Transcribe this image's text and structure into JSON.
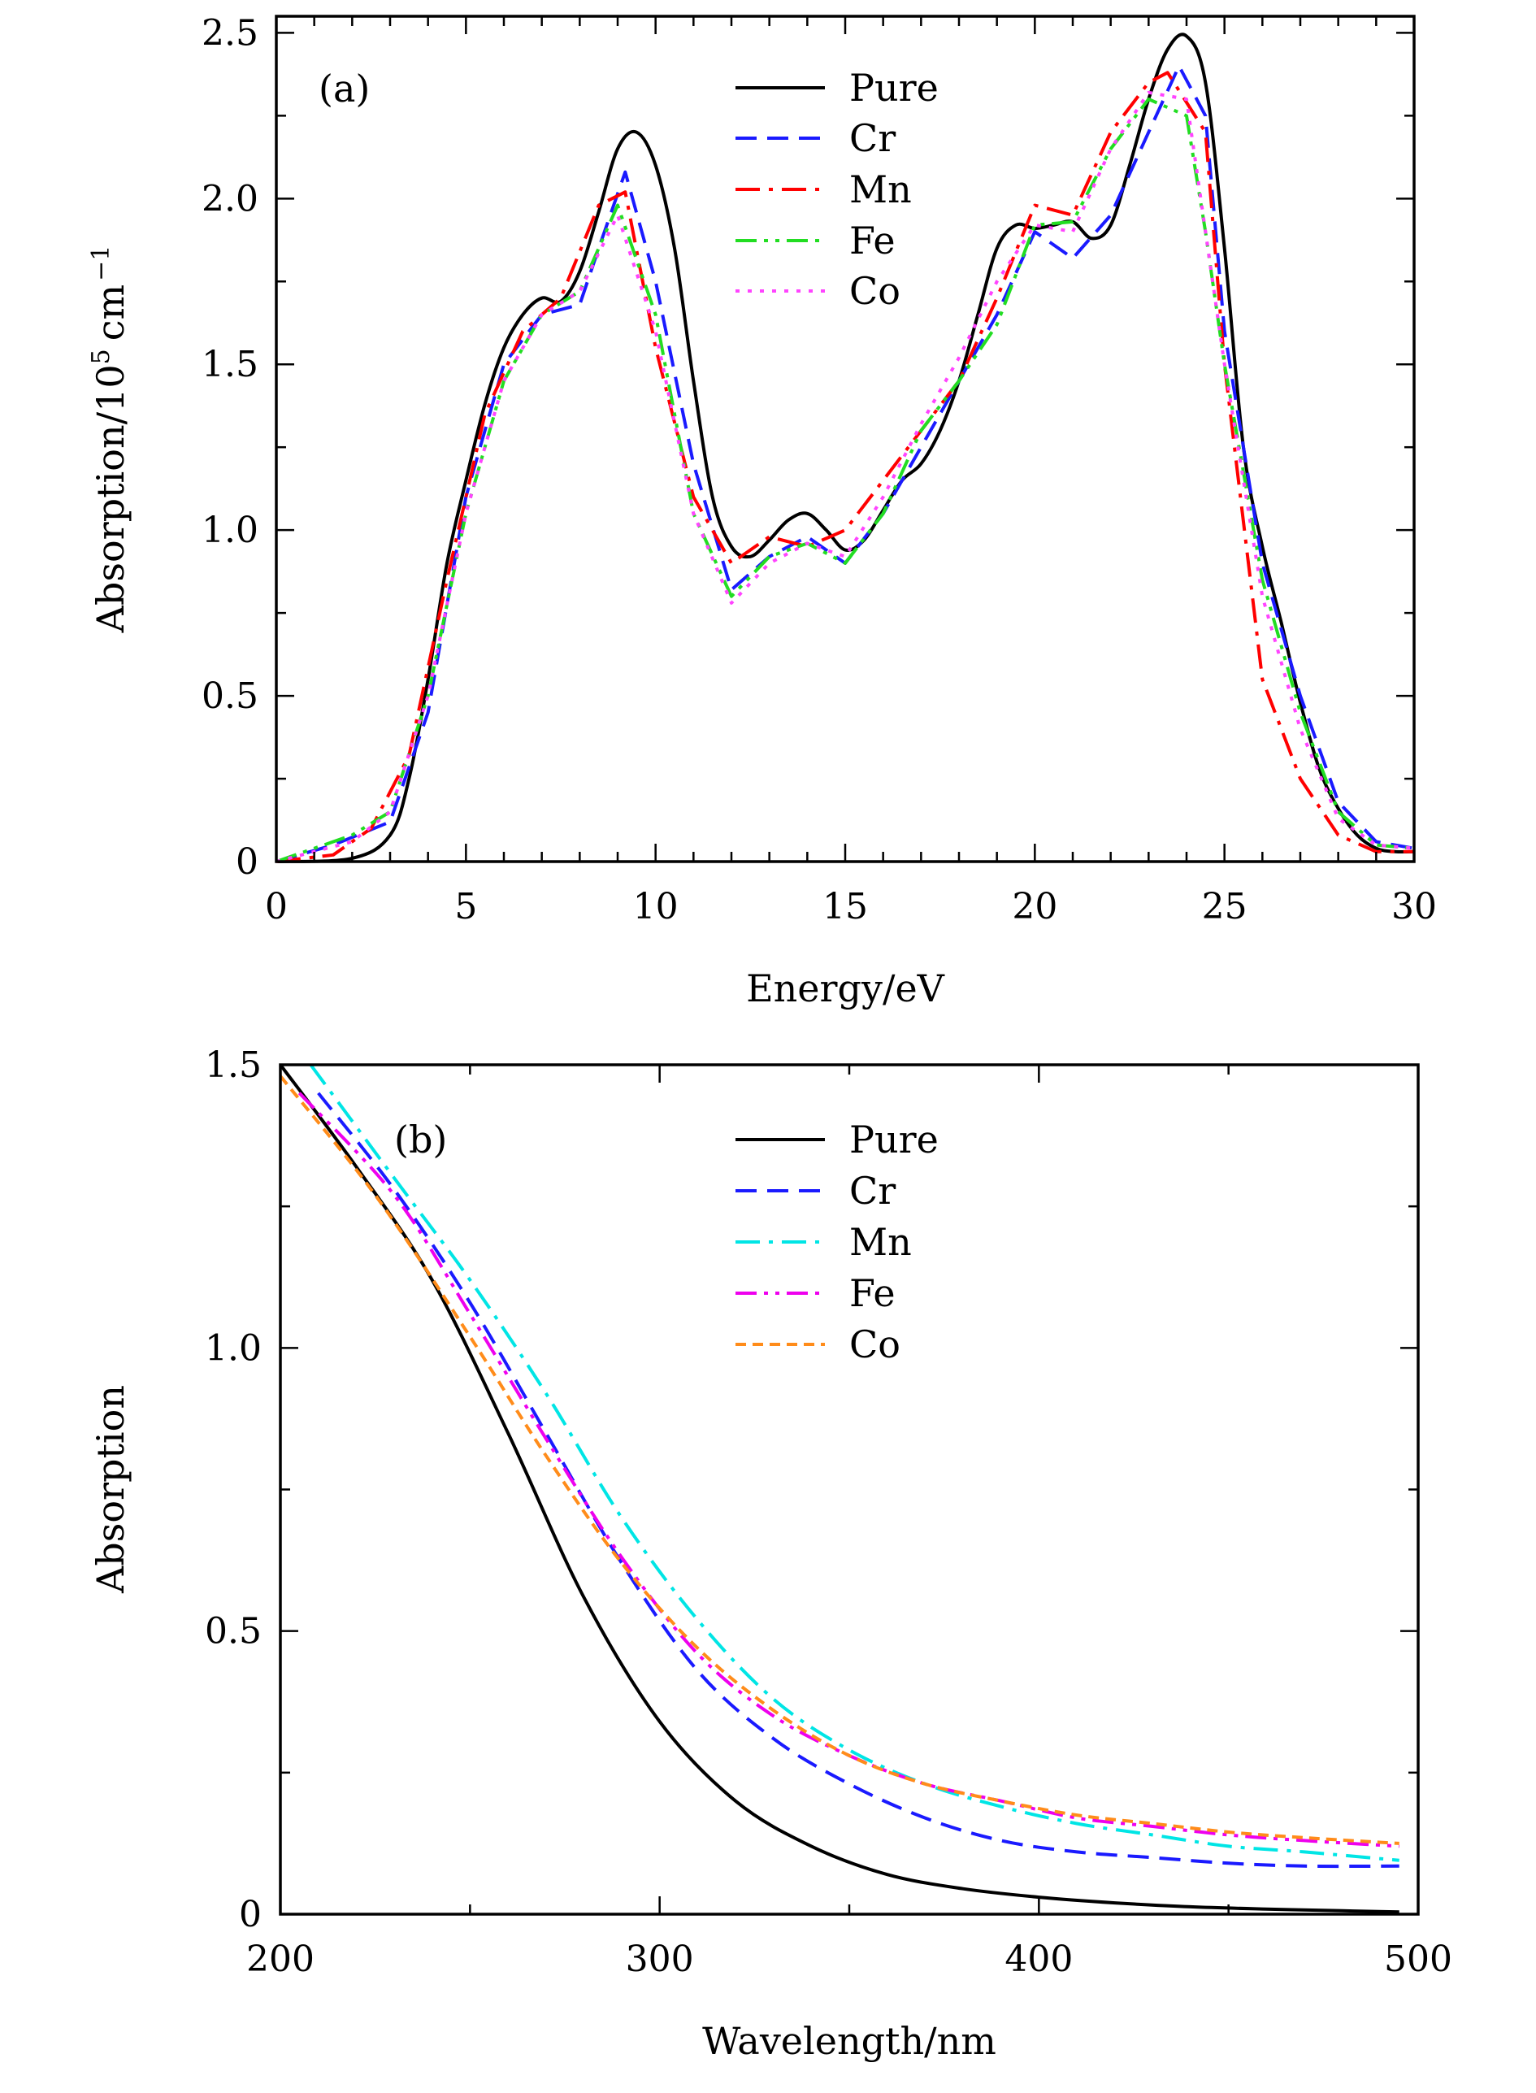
{
  "chart_data": [
    {
      "type": "line",
      "panel_label": "(a)",
      "xlabel": "Energy/eV",
      "ylabel": "Absorption/10",
      "ylabel_exp1": "5",
      "ylabel_unit": "cm",
      "ylabel_exp2": "−1",
      "xlim": [
        0,
        30
      ],
      "ylim": [
        0,
        2.55
      ],
      "xticks": [
        0,
        5,
        10,
        15,
        20,
        25,
        30
      ],
      "xtick_labels": [
        "0",
        "5",
        "10",
        "15",
        "20",
        "25",
        "30"
      ],
      "yticks": [
        0,
        0.5,
        1.0,
        1.5,
        2.0,
        2.5
      ],
      "ytick_labels": [
        "0",
        "0.5",
        "1.0",
        "1.5",
        "2.0",
        "2.5"
      ],
      "legend_position": "top-center",
      "series": [
        {
          "name": "Pure",
          "color": "#000000",
          "dash": "solid",
          "smooth": true,
          "x": [
            0,
            2.0,
            3.0,
            3.5,
            4.0,
            4.5,
            5.0,
            5.5,
            6.0,
            6.5,
            7.0,
            7.5,
            8.0,
            8.5,
            9.0,
            9.5,
            10.0,
            10.5,
            11.0,
            11.5,
            12.0,
            12.5,
            13.0,
            13.5,
            14.0,
            14.5,
            15.0,
            15.5,
            16.0,
            16.5,
            17.0,
            17.5,
            18.0,
            18.5,
            19.0,
            19.5,
            20.0,
            20.5,
            21.0,
            21.5,
            22.0,
            22.5,
            23.0,
            23.5,
            24.0,
            24.5,
            25.0,
            25.5,
            26.0,
            26.5,
            27.0,
            27.5,
            28.0,
            28.5,
            29.0,
            29.5,
            30.0
          ],
          "y": [
            0,
            0.01,
            0.08,
            0.25,
            0.55,
            0.9,
            1.15,
            1.38,
            1.55,
            1.65,
            1.7,
            1.69,
            1.78,
            1.96,
            2.15,
            2.2,
            2.1,
            1.85,
            1.45,
            1.1,
            0.95,
            0.92,
            0.97,
            1.03,
            1.05,
            1.0,
            0.94,
            0.97,
            1.06,
            1.15,
            1.2,
            1.3,
            1.45,
            1.65,
            1.85,
            1.92,
            1.91,
            1.92,
            1.93,
            1.88,
            1.92,
            2.1,
            2.3,
            2.45,
            2.49,
            2.35,
            1.85,
            1.25,
            0.95,
            0.72,
            0.48,
            0.28,
            0.16,
            0.08,
            0.04,
            0.03,
            0.03
          ]
        },
        {
          "name": "Cr",
          "color": "#1a1aff",
          "dash": "dashed",
          "smooth": false,
          "x": [
            0,
            1.5,
            3.0,
            4.0,
            5.0,
            6.0,
            7.0,
            8.0,
            8.5,
            9.2,
            10.0,
            11.0,
            12.0,
            13.0,
            14.0,
            15.0,
            16.0,
            17.0,
            18.0,
            19.0,
            20.0,
            21.0,
            22.0,
            23.0,
            23.8,
            24.5,
            25.0,
            26.0,
            27.0,
            28.0,
            29.0,
            30.0
          ],
          "y": [
            0,
            0.05,
            0.12,
            0.45,
            1.1,
            1.5,
            1.65,
            1.68,
            1.85,
            2.08,
            1.75,
            1.2,
            0.82,
            0.92,
            0.98,
            0.9,
            1.05,
            1.25,
            1.45,
            1.65,
            1.9,
            1.82,
            1.95,
            2.2,
            2.4,
            2.25,
            1.6,
            0.9,
            0.5,
            0.18,
            0.06,
            0.04
          ]
        },
        {
          "name": "Mn",
          "color": "#ff0000",
          "dash": "dashdot",
          "smooth": false,
          "x": [
            0,
            1.5,
            2.5,
            3.5,
            4.5,
            5.5,
            6.5,
            7.5,
            8.5,
            9.2,
            10.0,
            11.0,
            12.0,
            13.0,
            14.0,
            15.0,
            16.0,
            17.0,
            18.0,
            19.0,
            20.0,
            21.0,
            22.0,
            23.0,
            23.5,
            24.5,
            25.0,
            26.0,
            27.0,
            28.0,
            29.0,
            30.0
          ],
          "y": [
            0,
            0.02,
            0.1,
            0.32,
            0.85,
            1.35,
            1.6,
            1.7,
            1.98,
            2.02,
            1.55,
            1.1,
            0.9,
            0.98,
            0.95,
            1.0,
            1.15,
            1.3,
            1.45,
            1.7,
            1.98,
            1.95,
            2.2,
            2.35,
            2.38,
            2.2,
            1.5,
            0.55,
            0.25,
            0.08,
            0.03,
            0.03
          ]
        },
        {
          "name": "Fe",
          "color": "#22dd22",
          "dash": "dashdotdot",
          "smooth": false,
          "x": [
            0,
            2.0,
            3.0,
            4.0,
            5.0,
            6.0,
            7.0,
            8.0,
            9.0,
            10.0,
            11.0,
            12.0,
            13.0,
            14.0,
            15.0,
            16.0,
            17.0,
            18.0,
            19.0,
            20.0,
            21.0,
            22.0,
            23.0,
            24.0,
            24.5,
            25.0,
            26.0,
            27.0,
            28.0,
            29.0,
            30.0
          ],
          "y": [
            0,
            0.08,
            0.15,
            0.5,
            1.05,
            1.45,
            1.65,
            1.72,
            1.98,
            1.65,
            1.05,
            0.8,
            0.92,
            0.96,
            0.9,
            1.05,
            1.3,
            1.45,
            1.62,
            1.92,
            1.93,
            2.15,
            2.3,
            2.25,
            1.9,
            1.5,
            0.85,
            0.45,
            0.15,
            0.05,
            0.04
          ]
        },
        {
          "name": "Co",
          "color": "#ff44ff",
          "dash": "dotted",
          "smooth": false,
          "x": [
            0,
            2.0,
            3.0,
            4.0,
            5.0,
            6.0,
            7.0,
            8.0,
            9.0,
            10.0,
            11.0,
            12.0,
            13.0,
            14.0,
            15.0,
            16.0,
            17.0,
            18.0,
            19.0,
            20.0,
            21.0,
            22.0,
            23.0,
            24.0,
            25.0,
            26.0,
            27.0,
            28.0,
            29.0,
            30.0
          ],
          "y": [
            0,
            0.06,
            0.15,
            0.5,
            1.05,
            1.45,
            1.65,
            1.72,
            1.95,
            1.6,
            1.05,
            0.78,
            0.9,
            0.96,
            0.92,
            1.1,
            1.32,
            1.52,
            1.75,
            1.92,
            1.9,
            2.15,
            2.32,
            2.3,
            1.5,
            0.8,
            0.4,
            0.13,
            0.05,
            0.04
          ]
        }
      ]
    },
    {
      "type": "line",
      "panel_label": "(b)",
      "xlabel": "Wavelength/nm",
      "ylabel": "Absorption",
      "xlim": [
        200,
        500
      ],
      "ylim": [
        0,
        1.5
      ],
      "xticks": [
        200,
        300,
        400,
        500
      ],
      "xtick_labels": [
        "200",
        "300",
        "400",
        "500"
      ],
      "yticks": [
        0,
        0.5,
        1.0,
        1.5
      ],
      "ytick_labels": [
        "0",
        "0.5",
        "1.0",
        "1.5"
      ],
      "legend_position": "top-center",
      "series": [
        {
          "name": "Pure",
          "color": "#000000",
          "dash": "solid",
          "smooth": true,
          "x": [
            200,
            220,
            240,
            260,
            280,
            300,
            320,
            340,
            360,
            380,
            400,
            420,
            440,
            460,
            480,
            495
          ],
          "y": [
            1.5,
            1.32,
            1.12,
            0.85,
            0.56,
            0.34,
            0.2,
            0.12,
            0.07,
            0.045,
            0.03,
            0.02,
            0.013,
            0.009,
            0.006,
            0.004
          ]
        },
        {
          "name": "Cr",
          "color": "#1a1aff",
          "dash": "dashed",
          "smooth": true,
          "x": [
            210,
            230,
            250,
            270,
            290,
            310,
            330,
            350,
            370,
            390,
            410,
            430,
            450,
            470,
            495
          ],
          "y": [
            1.45,
            1.28,
            1.08,
            0.85,
            0.62,
            0.43,
            0.31,
            0.23,
            0.17,
            0.13,
            0.11,
            0.1,
            0.09,
            0.085,
            0.085
          ]
        },
        {
          "name": "Mn",
          "color": "#00e5e5",
          "dash": "dashdot",
          "smooth": true,
          "x": [
            208,
            230,
            250,
            270,
            290,
            310,
            330,
            350,
            370,
            390,
            410,
            430,
            450,
            470,
            495
          ],
          "y": [
            1.5,
            1.3,
            1.12,
            0.92,
            0.7,
            0.52,
            0.38,
            0.29,
            0.23,
            0.19,
            0.16,
            0.14,
            0.12,
            0.11,
            0.095
          ]
        },
        {
          "name": "Fe",
          "color": "#ee00ee",
          "dash": "dashdotdot",
          "smooth": true,
          "x": [
            205,
            230,
            250,
            270,
            290,
            310,
            330,
            350,
            370,
            390,
            410,
            430,
            450,
            470,
            495
          ],
          "y": [
            1.45,
            1.27,
            1.06,
            0.84,
            0.63,
            0.46,
            0.35,
            0.28,
            0.23,
            0.2,
            0.17,
            0.155,
            0.14,
            0.13,
            0.12
          ]
        },
        {
          "name": "Co",
          "color": "#ff8c1a",
          "dash": "shortdash",
          "smooth": true,
          "x": [
            200,
            225,
            250,
            270,
            290,
            310,
            330,
            350,
            370,
            390,
            410,
            430,
            450,
            470,
            495
          ],
          "y": [
            1.48,
            1.27,
            1.02,
            0.81,
            0.62,
            0.47,
            0.36,
            0.28,
            0.23,
            0.2,
            0.175,
            0.16,
            0.145,
            0.135,
            0.125
          ]
        }
      ]
    }
  ]
}
